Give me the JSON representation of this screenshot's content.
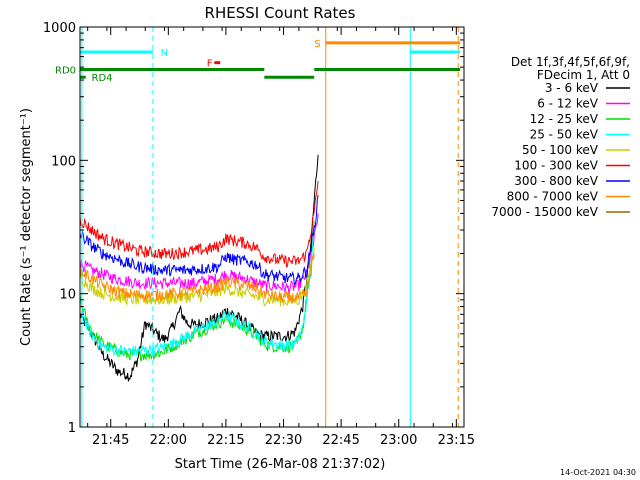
{
  "chart_data": {
    "type": "line",
    "title": "RHESSI Count Rates",
    "xlabel": "Start Time (26-Mar-08 21:37:02)",
    "ylabel": "Count Rate (s⁻¹ detector segment⁻¹)",
    "yscale": "log",
    "xlim_minutes": [
      0,
      100
    ],
    "ylim": [
      1,
      1000
    ],
    "x_tick_labels": [
      "21:45",
      "22:00",
      "22:15",
      "22:30",
      "22:45",
      "23:00",
      "23:15"
    ],
    "x_tick_minutes": [
      8,
      23,
      38,
      53,
      68,
      83,
      98
    ],
    "y_tick_labels": [
      "1",
      "10",
      "100",
      "1000"
    ],
    "y_tick_values": [
      1,
      10,
      100,
      1000
    ],
    "legend_position": "right",
    "legend_header": [
      "Det 1f,3f,4f,5f,6f,9f,",
      "FDecim 1, Att 0"
    ],
    "series": [
      {
        "name": "3 - 6 keV",
        "color": "#000000",
        "points": [
          [
            0,
            7
          ],
          [
            3,
            5
          ],
          [
            6,
            3.5
          ],
          [
            8,
            3
          ],
          [
            10,
            2.6
          ],
          [
            12,
            2.5
          ],
          [
            13,
            2.4
          ],
          [
            15,
            3.2
          ],
          [
            17,
            6
          ],
          [
            20,
            5
          ],
          [
            22,
            4.5
          ],
          [
            24,
            5.5
          ],
          [
            26,
            7.5
          ],
          [
            28,
            6
          ],
          [
            30,
            5.8
          ],
          [
            33,
            6.2
          ],
          [
            36,
            6.5
          ],
          [
            38,
            7.5
          ],
          [
            40,
            7
          ],
          [
            43,
            6
          ],
          [
            46,
            5
          ],
          [
            48,
            4.8
          ],
          [
            51,
            4.8
          ],
          [
            54,
            4.8
          ],
          [
            56,
            5.2
          ],
          [
            58,
            8
          ],
          [
            60,
            20
          ],
          [
            61,
            50
          ],
          [
            62,
            110
          ]
        ]
      },
      {
        "name": "6 - 12 keV",
        "color": "#ff00ff",
        "points": [
          [
            0,
            17
          ],
          [
            3,
            15
          ],
          [
            6,
            14
          ],
          [
            9,
            13
          ],
          [
            12,
            12.5
          ],
          [
            15,
            12
          ],
          [
            18,
            12
          ],
          [
            21,
            12
          ],
          [
            24,
            12
          ],
          [
            27,
            12
          ],
          [
            30,
            12
          ],
          [
            33,
            12.5
          ],
          [
            36,
            13
          ],
          [
            38,
            14
          ],
          [
            40,
            13.5
          ],
          [
            43,
            13
          ],
          [
            46,
            12
          ],
          [
            48,
            11.5
          ],
          [
            51,
            11.5
          ],
          [
            54,
            11
          ],
          [
            57,
            11.5
          ],
          [
            59,
            14
          ],
          [
            61,
            25
          ],
          [
            62,
            40
          ]
        ]
      },
      {
        "name": "12 - 25 keV",
        "color": "#00dd00",
        "points": [
          [
            0,
            9
          ],
          [
            2,
            6
          ],
          [
            4,
            4.8
          ],
          [
            6,
            4.2
          ],
          [
            9,
            3.8
          ],
          [
            12,
            3.5
          ],
          [
            15,
            3.5
          ],
          [
            18,
            3.5
          ],
          [
            21,
            3.6
          ],
          [
            24,
            4
          ],
          [
            27,
            4.5
          ],
          [
            30,
            5
          ],
          [
            33,
            5.5
          ],
          [
            36,
            6
          ],
          [
            38,
            6.5
          ],
          [
            40,
            6
          ],
          [
            43,
            5.5
          ],
          [
            46,
            4.8
          ],
          [
            48,
            4.2
          ],
          [
            51,
            4
          ],
          [
            54,
            4
          ],
          [
            56,
            4
          ],
          [
            58,
            5.5
          ],
          [
            60,
            15
          ],
          [
            61,
            35
          ]
        ]
      },
      {
        "name": "25 - 50 keV",
        "color": "#00ffff",
        "points": [
          [
            0,
            8.5
          ],
          [
            2,
            5.5
          ],
          [
            4,
            4.5
          ],
          [
            6,
            4
          ],
          [
            9,
            3.8
          ],
          [
            12,
            3.7
          ],
          [
            15,
            3.7
          ],
          [
            18,
            3.8
          ],
          [
            21,
            3.9
          ],
          [
            24,
            4.2
          ],
          [
            27,
            4.7
          ],
          [
            30,
            5.2
          ],
          [
            33,
            5.8
          ],
          [
            36,
            6.2
          ],
          [
            38,
            7
          ],
          [
            40,
            6.3
          ],
          [
            43,
            5.8
          ],
          [
            46,
            5
          ],
          [
            48,
            4.4
          ],
          [
            51,
            4.2
          ],
          [
            54,
            4.1
          ],
          [
            56,
            4.1
          ],
          [
            58,
            5.5
          ],
          [
            60,
            14
          ],
          [
            61,
            30
          ]
        ]
      },
      {
        "name": "50 - 100 keV",
        "color": "#cccc00",
        "points": [
          [
            0,
            13.5
          ],
          [
            3,
            11
          ],
          [
            6,
            10
          ],
          [
            9,
            9.5
          ],
          [
            12,
            9.2
          ],
          [
            15,
            9
          ],
          [
            18,
            9
          ],
          [
            21,
            9
          ],
          [
            24,
            9.2
          ],
          [
            27,
            9.4
          ],
          [
            30,
            9.6
          ],
          [
            33,
            9.8
          ],
          [
            36,
            10.3
          ],
          [
            38,
            11
          ],
          [
            40,
            10.5
          ],
          [
            43,
            10
          ],
          [
            46,
            9.5
          ],
          [
            48,
            9
          ],
          [
            51,
            9
          ],
          [
            54,
            8.8
          ],
          [
            57,
            9
          ],
          [
            59,
            11
          ],
          [
            61,
            22
          ]
        ]
      },
      {
        "name": "100 - 300 keV",
        "color": "#ff0000",
        "points": [
          [
            0,
            36
          ],
          [
            3,
            30
          ],
          [
            6,
            26
          ],
          [
            9,
            24
          ],
          [
            12,
            22.5
          ],
          [
            15,
            21
          ],
          [
            18,
            20.5
          ],
          [
            21,
            20
          ],
          [
            24,
            20
          ],
          [
            27,
            20.5
          ],
          [
            30,
            21
          ],
          [
            33,
            21.5
          ],
          [
            36,
            22.5
          ],
          [
            38,
            26
          ],
          [
            40,
            25
          ],
          [
            43,
            24
          ],
          [
            46,
            22
          ],
          [
            48,
            19
          ],
          [
            51,
            18
          ],
          [
            54,
            17.5
          ],
          [
            57,
            17.5
          ],
          [
            59,
            20
          ],
          [
            61,
            40
          ],
          [
            62,
            70
          ]
        ]
      },
      {
        "name": "300 - 800 keV",
        "color": "#0000ff",
        "points": [
          [
            0,
            28
          ],
          [
            3,
            23
          ],
          [
            6,
            20
          ],
          [
            9,
            18.5
          ],
          [
            12,
            17
          ],
          [
            15,
            16
          ],
          [
            18,
            15.5
          ],
          [
            21,
            15
          ],
          [
            24,
            15
          ],
          [
            27,
            15
          ],
          [
            30,
            15.2
          ],
          [
            33,
            15.5
          ],
          [
            36,
            16
          ],
          [
            38,
            19
          ],
          [
            40,
            18
          ],
          [
            43,
            17.5
          ],
          [
            46,
            16.5
          ],
          [
            48,
            14
          ],
          [
            51,
            13.5
          ],
          [
            54,
            13
          ],
          [
            57,
            13
          ],
          [
            59,
            15
          ],
          [
            61,
            30
          ],
          [
            62,
            55
          ]
        ]
      },
      {
        "name": "800 - 7000 keV",
        "color": "#ff8800",
        "points": [
          [
            0,
            15
          ],
          [
            3,
            13
          ],
          [
            6,
            11.5
          ],
          [
            9,
            10.5
          ],
          [
            12,
            10
          ],
          [
            15,
            9.8
          ],
          [
            18,
            9.8
          ],
          [
            21,
            9.8
          ],
          [
            24,
            10
          ],
          [
            27,
            10.2
          ],
          [
            30,
            10.5
          ],
          [
            33,
            10.8
          ],
          [
            36,
            11.2
          ],
          [
            38,
            12.5
          ],
          [
            40,
            12
          ],
          [
            43,
            11.5
          ],
          [
            46,
            11
          ],
          [
            48,
            10
          ],
          [
            51,
            9.5
          ],
          [
            54,
            9.3
          ],
          [
            57,
            9.3
          ],
          [
            59,
            10
          ],
          [
            61,
            20
          ]
        ]
      },
      {
        "name": "7000 - 15000 keV",
        "color": "#996600",
        "points": []
      }
    ],
    "annotations": {
      "vlines": [
        {
          "minute": 0.5,
          "color": "#00ffff",
          "style": "solid"
        },
        {
          "minute": 19,
          "color": "#00ffff",
          "style": "dashed"
        },
        {
          "minute": 64,
          "color": "#ff8800",
          "style": "solid"
        },
        {
          "minute": 86,
          "color": "#00ffff",
          "style": "solid"
        },
        {
          "minute": 98.5,
          "color": "#ff8800",
          "style": "dashed"
        }
      ],
      "flag_bars": [
        {
          "label": "N",
          "color": "#00ffff",
          "y": 650,
          "segments": [
            [
              0,
              19
            ],
            [
              86,
              99
            ]
          ],
          "label_at": 21
        },
        {
          "label": "S",
          "color": "#ff8800",
          "y": 760,
          "segments": [
            [
              64,
              99
            ]
          ],
          "label_at": 61
        },
        {
          "label": "F",
          "color": "#ff0000",
          "y": 540,
          "segments": [
            [
              35,
              36.5
            ]
          ],
          "label_at": 33
        },
        {
          "label": "RD0",
          "color": "#008800",
          "y": 480,
          "segments": [
            [
              0,
              48
            ],
            [
              61,
              99
            ]
          ],
          "label_at": -6.5
        },
        {
          "label": "RD4",
          "color": "#008800",
          "y": 420,
          "segments": [
            [
              0,
              1.5
            ],
            [
              48,
              61
            ]
          ],
          "label_at": 3
        }
      ]
    },
    "footer_timestamp": "14-Oct-2021 04:30"
  }
}
